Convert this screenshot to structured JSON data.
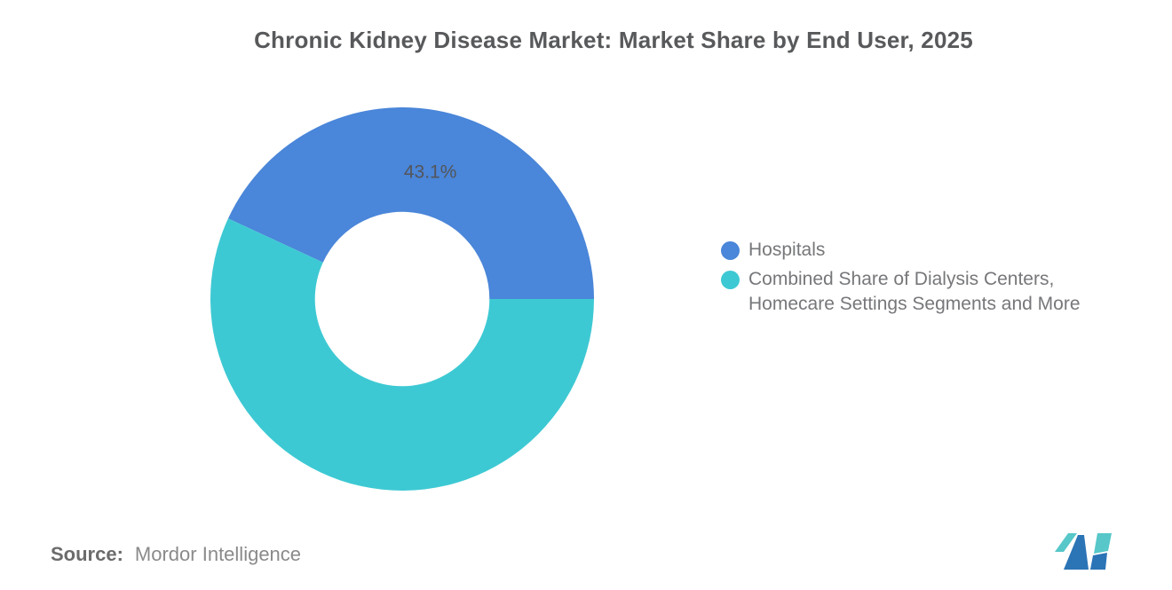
{
  "title": "Chronic Kidney Disease Market: Market Share by End User, 2025",
  "chart_data": {
    "type": "pie",
    "subtype": "donut",
    "title": "Chronic Kidney Disease Market: Market Share by End User, 2025",
    "slices": [
      {
        "label": "Hospitals",
        "value": 43.1,
        "data_label": "43.1%",
        "color": "#4A86D9"
      },
      {
        "label": "Combined Share of Dialysis Centers, Homecare Settings Segments and More",
        "value": 56.9,
        "data_label": "",
        "color": "#3DC9D3"
      }
    ],
    "start_angle_deg": 0,
    "direction": "counterclockwise",
    "inner_radius_ratio": 0.455,
    "legend_position": "right",
    "data_label_color": "#53555A"
  },
  "source": {
    "prefix": "Source:",
    "text": "Mordor Intelligence"
  },
  "colors": {
    "background": "#FFFFFF",
    "title_text": "#58595B",
    "legend_text": "#76777A",
    "slice_blue": "#4A86D9",
    "slice_teal": "#3DC9D3",
    "logo_blue": "#2B74B6",
    "logo_teal": "#57C7C9"
  }
}
